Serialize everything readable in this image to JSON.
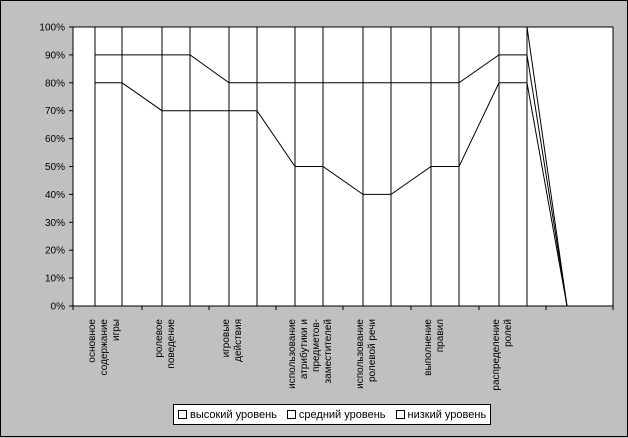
{
  "chart_data": {
    "type": "line",
    "title": "",
    "xlabel": "",
    "ylabel": "",
    "ylim": [
      0,
      1
    ],
    "y_ticks": [
      "0%",
      "10%",
      "20%",
      "30%",
      "40%",
      "50%",
      "60%",
      "70%",
      "80%",
      "90%",
      "100%"
    ],
    "grid": false,
    "legend_position": "bottom",
    "categories": [
      [
        "основное",
        "содержание",
        "игры"
      ],
      [
        "ролевое",
        "поведение"
      ],
      [
        "игровые",
        "действия"
      ],
      [
        "использование",
        "атрибутики и",
        "предметов-",
        "заместителей"
      ],
      [
        "использование",
        "ролевой речи"
      ],
      [
        "выполнение",
        "правил"
      ],
      [
        "распределение",
        "ролей"
      ]
    ],
    "series": [
      {
        "name": "высокий уровень",
        "values": [
          1.0,
          1.0,
          1.0,
          1.0,
          1.0,
          1.0,
          1.0
        ]
      },
      {
        "name": "средний уровень",
        "values": [
          0.9,
          0.9,
          0.8,
          0.8,
          0.8,
          0.8,
          0.9
        ]
      },
      {
        "name": "низкий уровень",
        "values": [
          0.8,
          0.7,
          0.7,
          0.5,
          0.4,
          0.5,
          0.8
        ]
      }
    ]
  }
}
